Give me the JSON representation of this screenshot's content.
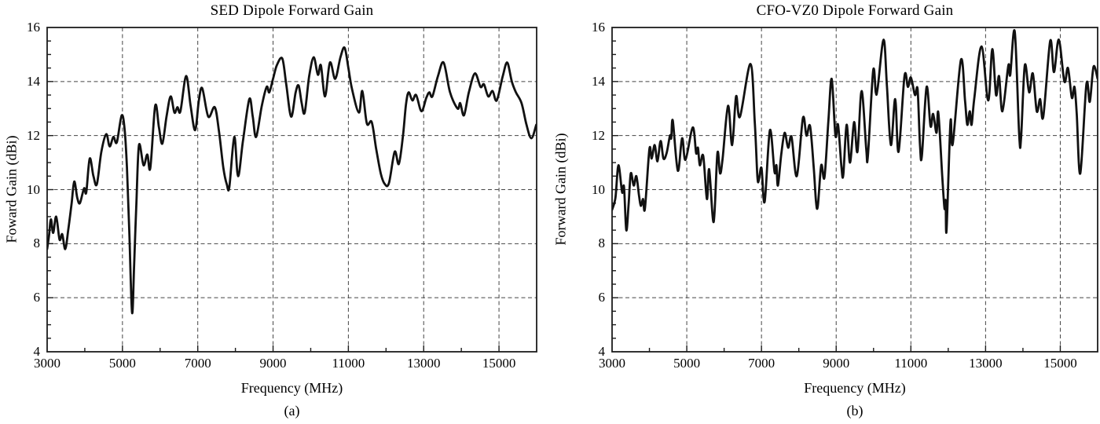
{
  "figure": {
    "background": "#ffffff",
    "text_color": "#000000",
    "frame_color": "#1c1c1c",
    "grid_color": "#454545",
    "curve_color": "#111111"
  },
  "chart_data": [
    {
      "type": "line",
      "title": "SED Dipole Forward Gain",
      "xlabel": "Frequency (MHz)",
      "ylabel": "Foward Gain (dBi)",
      "caption": "(a)",
      "xlim": [
        3000,
        16000
      ],
      "ylim": [
        4,
        16
      ],
      "xticks": [
        3000,
        5000,
        7000,
        9000,
        11000,
        13000,
        15000
      ],
      "yticks": [
        4,
        6,
        8,
        10,
        12,
        14,
        16
      ],
      "minor_x_step": 1000,
      "minor_y_step": 0.5,
      "grid": "dashed",
      "legend": "none",
      "series": [
        {
          "name": "forward-gain",
          "points": [
            [
              3000,
              7.8
            ],
            [
              3050,
              8.3
            ],
            [
              3100,
              8.9
            ],
            [
              3160,
              8.4
            ],
            [
              3240,
              9.0
            ],
            [
              3330,
              8.15
            ],
            [
              3400,
              8.35
            ],
            [
              3480,
              7.8
            ],
            [
              3560,
              8.5
            ],
            [
              3650,
              9.5
            ],
            [
              3720,
              10.3
            ],
            [
              3800,
              9.7
            ],
            [
              3870,
              9.5
            ],
            [
              3980,
              10.05
            ],
            [
              4040,
              9.9
            ],
            [
              4130,
              11.15
            ],
            [
              4230,
              10.5
            ],
            [
              4320,
              10.2
            ],
            [
              4440,
              11.4
            ],
            [
              4570,
              12.05
            ],
            [
              4660,
              11.6
            ],
            [
              4760,
              11.95
            ],
            [
              4850,
              11.75
            ],
            [
              4980,
              12.75
            ],
            [
              5060,
              12.2
            ],
            [
              5120,
              10.8
            ],
            [
              5180,
              8.5
            ],
            [
              5255,
              5.45
            ],
            [
              5310,
              7.2
            ],
            [
              5370,
              9.5
            ],
            [
              5440,
              11.65
            ],
            [
              5560,
              10.9
            ],
            [
              5660,
              11.3
            ],
            [
              5740,
              10.8
            ],
            [
              5870,
              13.1
            ],
            [
              5970,
              12.3
            ],
            [
              6060,
              11.7
            ],
            [
              6170,
              12.7
            ],
            [
              6280,
              13.45
            ],
            [
              6380,
              12.85
            ],
            [
              6460,
              13.05
            ],
            [
              6540,
              12.9
            ],
            [
              6690,
              14.2
            ],
            [
              6810,
              13.1
            ],
            [
              6930,
              12.2
            ],
            [
              7030,
              13.3
            ],
            [
              7120,
              13.75
            ],
            [
              7280,
              12.7
            ],
            [
              7450,
              13.05
            ],
            [
              7560,
              12.2
            ],
            [
              7680,
              10.8
            ],
            [
              7770,
              10.2
            ],
            [
              7840,
              10.1
            ],
            [
              7970,
              11.95
            ],
            [
              8070,
              10.5
            ],
            [
              8200,
              11.8
            ],
            [
              8370,
              13.35
            ],
            [
              8460,
              12.7
            ],
            [
              8550,
              11.95
            ],
            [
              8700,
              13.1
            ],
            [
              8830,
              13.8
            ],
            [
              8900,
              13.6
            ],
            [
              9000,
              14.1
            ],
            [
              9100,
              14.6
            ],
            [
              9245,
              14.85
            ],
            [
              9350,
              13.9
            ],
            [
              9480,
              12.7
            ],
            [
              9600,
              13.6
            ],
            [
              9680,
              13.85
            ],
            [
              9760,
              13.2
            ],
            [
              9840,
              12.85
            ],
            [
              9960,
              14.2
            ],
            [
              10080,
              14.9
            ],
            [
              10190,
              14.25
            ],
            [
              10270,
              14.6
            ],
            [
              10380,
              13.45
            ],
            [
              10510,
              14.7
            ],
            [
              10650,
              14.1
            ],
            [
              10790,
              14.9
            ],
            [
              10900,
              15.25
            ],
            [
              11000,
              14.5
            ],
            [
              11100,
              13.7
            ],
            [
              11280,
              12.85
            ],
            [
              11370,
              13.65
            ],
            [
              11490,
              12.45
            ],
            [
              11620,
              12.5
            ],
            [
              11740,
              11.5
            ],
            [
              11860,
              10.6
            ],
            [
              11970,
              10.2
            ],
            [
              12080,
              10.25
            ],
            [
              12230,
              11.4
            ],
            [
              12340,
              10.95
            ],
            [
              12450,
              12.0
            ],
            [
              12530,
              13.15
            ],
            [
              12600,
              13.6
            ],
            [
              12700,
              13.3
            ],
            [
              12800,
              13.5
            ],
            [
              12940,
              12.9
            ],
            [
              13070,
              13.4
            ],
            [
              13150,
              13.6
            ],
            [
              13230,
              13.45
            ],
            [
              13380,
              14.2
            ],
            [
              13530,
              14.7
            ],
            [
              13700,
              13.6
            ],
            [
              13900,
              13.0
            ],
            [
              13970,
              13.2
            ],
            [
              14070,
              12.75
            ],
            [
              14200,
              13.6
            ],
            [
              14360,
              14.3
            ],
            [
              14510,
              13.8
            ],
            [
              14600,
              13.9
            ],
            [
              14715,
              13.45
            ],
            [
              14830,
              13.65
            ],
            [
              14940,
              13.3
            ],
            [
              15100,
              14.2
            ],
            [
              15220,
              14.7
            ],
            [
              15340,
              14.0
            ],
            [
              15450,
              13.6
            ],
            [
              15600,
              13.2
            ],
            [
              15730,
              12.4
            ],
            [
              15860,
              11.9
            ],
            [
              15990,
              12.4
            ]
          ]
        }
      ]
    },
    {
      "type": "line",
      "title": "CFO-VZ0 Dipole Forward Gain",
      "xlabel": "Frequency (MHz)",
      "ylabel": "Forward Gain (dBi)",
      "caption": "(b)",
      "xlim": [
        3000,
        16000
      ],
      "ylim": [
        4,
        16
      ],
      "xticks": [
        3000,
        5000,
        7000,
        9000,
        11000,
        13000,
        15000
      ],
      "yticks": [
        4,
        6,
        8,
        10,
        12,
        14,
        16
      ],
      "minor_x_step": 1000,
      "minor_y_step": 0.5,
      "grid": "dashed",
      "legend": "none",
      "series": [
        {
          "name": "forward-gain",
          "points": [
            [
              3000,
              9.25
            ],
            [
              3090,
              9.7
            ],
            [
              3170,
              10.9
            ],
            [
              3270,
              9.9
            ],
            [
              3320,
              10.1
            ],
            [
              3380,
              8.5
            ],
            [
              3440,
              9.4
            ],
            [
              3500,
              10.6
            ],
            [
              3580,
              10.15
            ],
            [
              3650,
              10.5
            ],
            [
              3720,
              9.8
            ],
            [
              3770,
              9.4
            ],
            [
              3830,
              9.65
            ],
            [
              3880,
              9.3
            ],
            [
              4000,
              11.5
            ],
            [
              4060,
              11.15
            ],
            [
              4140,
              11.65
            ],
            [
              4215,
              11.05
            ],
            [
              4300,
              11.8
            ],
            [
              4375,
              11.15
            ],
            [
              4460,
              11.35
            ],
            [
              4550,
              12.0
            ],
            [
              4585,
              11.9
            ],
            [
              4625,
              12.55
            ],
            [
              4760,
              10.7
            ],
            [
              4875,
              11.9
            ],
            [
              4965,
              11.1
            ],
            [
              5160,
              12.3
            ],
            [
              5250,
              11.35
            ],
            [
              5300,
              11.55
            ],
            [
              5350,
              10.9
            ],
            [
              5440,
              11.25
            ],
            [
              5540,
              9.65
            ],
            [
              5600,
              10.75
            ],
            [
              5720,
              8.8
            ],
            [
              5820,
              11.35
            ],
            [
              5890,
              10.6
            ],
            [
              5960,
              11.15
            ],
            [
              6105,
              13.1
            ],
            [
              6215,
              11.65
            ],
            [
              6320,
              13.45
            ],
            [
              6425,
              12.7
            ],
            [
              6705,
              14.65
            ],
            [
              6820,
              12.5
            ],
            [
              6890,
              10.5
            ],
            [
              6930,
              10.35
            ],
            [
              7000,
              10.8
            ],
            [
              7085,
              9.55
            ],
            [
              7225,
              12.2
            ],
            [
              7350,
              10.65
            ],
            [
              7400,
              10.9
            ],
            [
              7440,
              10.15
            ],
            [
              7530,
              11.3
            ],
            [
              7620,
              12.1
            ],
            [
              7715,
              11.55
            ],
            [
              7805,
              11.95
            ],
            [
              7945,
              10.5
            ],
            [
              8110,
              12.65
            ],
            [
              8205,
              12.0
            ],
            [
              8300,
              12.35
            ],
            [
              8400,
              10.8
            ],
            [
              8460,
              9.55
            ],
            [
              8510,
              9.4
            ],
            [
              8600,
              10.9
            ],
            [
              8685,
              10.45
            ],
            [
              8790,
              12.5
            ],
            [
              8880,
              14.1
            ],
            [
              8980,
              12.0
            ],
            [
              9050,
              12.4
            ],
            [
              9140,
              10.85
            ],
            [
              9190,
              10.55
            ],
            [
              9280,
              12.4
            ],
            [
              9370,
              11.0
            ],
            [
              9480,
              12.5
            ],
            [
              9570,
              11.4
            ],
            [
              9680,
              13.65
            ],
            [
              9805,
              11.5
            ],
            [
              9850,
              11.25
            ],
            [
              9990,
              14.4
            ],
            [
              10060,
              13.6
            ],
            [
              10110,
              13.75
            ],
            [
              10270,
              15.55
            ],
            [
              10360,
              13.8
            ],
            [
              10465,
              11.65
            ],
            [
              10580,
              13.35
            ],
            [
              10670,
              11.4
            ],
            [
              10830,
              14.2
            ],
            [
              10920,
              13.8
            ],
            [
              11000,
              14.15
            ],
            [
              11110,
              13.5
            ],
            [
              11180,
              13.7
            ],
            [
              11245,
              11.6
            ],
            [
              11295,
              11.25
            ],
            [
              11420,
              13.8
            ],
            [
              11525,
              12.35
            ],
            [
              11595,
              12.8
            ],
            [
              11685,
              12.1
            ],
            [
              11735,
              12.85
            ],
            [
              11840,
              10.5
            ],
            [
              11900,
              9.3
            ],
            [
              11930,
              9.6
            ],
            [
              11955,
              8.5
            ],
            [
              12060,
              12.5
            ],
            [
              12120,
              11.7
            ],
            [
              12340,
              14.8
            ],
            [
              12450,
              13.3
            ],
            [
              12510,
              12.4
            ],
            [
              12575,
              12.9
            ],
            [
              12625,
              12.4
            ],
            [
              12700,
              13.4
            ],
            [
              12890,
              15.3
            ],
            [
              13070,
              13.3
            ],
            [
              13180,
              15.2
            ],
            [
              13280,
              13.5
            ],
            [
              13360,
              14.2
            ],
            [
              13450,
              12.9
            ],
            [
              13610,
              14.6
            ],
            [
              13660,
              14.25
            ],
            [
              13780,
              15.85
            ],
            [
              13900,
              12.0
            ],
            [
              13950,
              11.9
            ],
            [
              14050,
              14.6
            ],
            [
              14165,
              13.6
            ],
            [
              14265,
              14.3
            ],
            [
              14370,
              12.9
            ],
            [
              14460,
              13.35
            ],
            [
              14545,
              12.7
            ],
            [
              14730,
              15.5
            ],
            [
              14830,
              14.35
            ],
            [
              14960,
              15.55
            ],
            [
              15110,
              14.0
            ],
            [
              15205,
              14.5
            ],
            [
              15310,
              13.4
            ],
            [
              15380,
              13.8
            ],
            [
              15440,
              12.8
            ],
            [
              15535,
              10.6
            ],
            [
              15700,
              13.9
            ],
            [
              15790,
              13.25
            ],
            [
              15890,
              14.55
            ],
            [
              16000,
              14.1
            ]
          ]
        }
      ]
    }
  ]
}
